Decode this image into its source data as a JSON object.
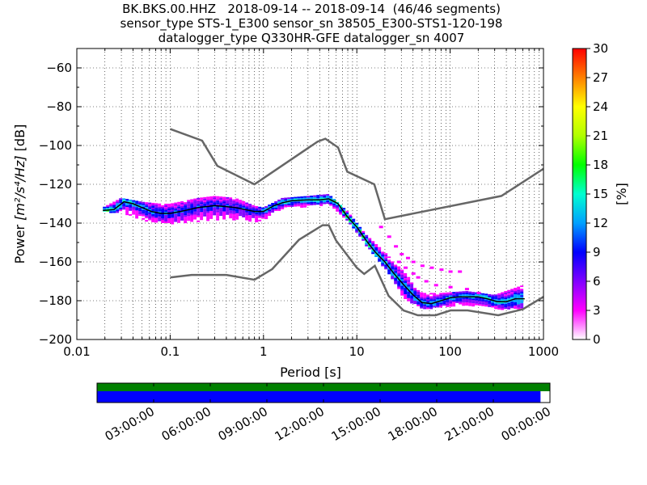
{
  "chart_data": [
    {
      "type": "heatmap",
      "subtype": "probabilistic-power-spectral-density",
      "title_lines": [
        "BK.BKS.00.HHZ   2018-09-14 -- 2018-09-14  (46/46 segments)",
        "sensor_type STS-1_E300 sensor_sn 38505_E300-STS1-120-198",
        "datalogger_type Q330HR-GFE datalogger_sn 4007"
      ],
      "xlabel": "Period [s]",
      "ylabel_prefix": "Power ",
      "ylabel_units": "[m²/s⁴/Hz]",
      "ylabel_suffix": " [dB]",
      "x_scale": "log",
      "xlim": [
        0.01,
        1000
      ],
      "ylim": [
        -200,
        -50
      ],
      "x_ticks": [
        {
          "value": 0.01,
          "label": "0.01"
        },
        {
          "value": 0.1,
          "label": "0.1"
        },
        {
          "value": 1,
          "label": "1"
        },
        {
          "value": 10,
          "label": "10"
        },
        {
          "value": 100,
          "label": "100"
        },
        {
          "value": 1000,
          "label": "1000"
        }
      ],
      "y_ticks": [
        {
          "value": -200,
          "label": "−200"
        },
        {
          "value": -180,
          "label": "−180"
        },
        {
          "value": -160,
          "label": "−160"
        },
        {
          "value": -140,
          "label": "−140"
        },
        {
          "value": -120,
          "label": "−120"
        },
        {
          "value": -100,
          "label": "−100"
        },
        {
          "value": -80,
          "label": "−80"
        },
        {
          "value": -60,
          "label": "−60"
        }
      ],
      "grid": "dotted",
      "colorbar": {
        "label": "[%]",
        "range": [
          0,
          30
        ],
        "ticks": [
          {
            "value": 0,
            "label": "0"
          },
          {
            "value": 3,
            "label": "3"
          },
          {
            "value": 6,
            "label": "6"
          },
          {
            "value": 9,
            "label": "9"
          },
          {
            "value": 12,
            "label": "12"
          },
          {
            "value": 15,
            "label": "15"
          },
          {
            "value": 18,
            "label": "18"
          },
          {
            "value": 21,
            "label": "21"
          },
          {
            "value": 24,
            "label": "24"
          },
          {
            "value": 27,
            "label": "27"
          },
          {
            "value": 30,
            "label": "30"
          }
        ],
        "colors": [
          "#ffffff",
          "#ff00ff",
          "#8000ff",
          "#0000ff",
          "#00a0ff",
          "#00ffd0",
          "#00ff00",
          "#b0ff00",
          "#ffff00",
          "#ff8000",
          "#ff0000"
        ]
      },
      "noise_models": [
        {
          "name": "high-noise-model",
          "color": "#666666",
          "points": [
            [
              0.1,
              -91.5
            ],
            [
              0.22,
              -97.5
            ],
            [
              0.32,
              -110.5
            ],
            [
              0.8,
              -120
            ],
            [
              3.8,
              -98
            ],
            [
              4.6,
              -96.5
            ],
            [
              6.3,
              -101
            ],
            [
              7.9,
              -113.5
            ],
            [
              15.4,
              -120
            ],
            [
              20,
              -138
            ],
            [
              354,
              -126
            ],
            [
              1000,
              -112
            ]
          ]
        },
        {
          "name": "low-noise-model",
          "color": "#666666",
          "points": [
            [
              0.1,
              -168
            ],
            [
              0.17,
              -166.7
            ],
            [
              0.4,
              -166.7
            ],
            [
              0.8,
              -169.2
            ],
            [
              1.24,
              -163.7
            ],
            [
              2.4,
              -148.6
            ],
            [
              4.3,
              -141.1
            ],
            [
              5.0,
              -141.1
            ],
            [
              6.0,
              -149
            ],
            [
              10,
              -163
            ],
            [
              12,
              -166.2
            ],
            [
              15.6,
              -162
            ],
            [
              21.9,
              -177.5
            ],
            [
              31.6,
              -185
            ],
            [
              45,
              -187.5
            ],
            [
              70,
              -187.5
            ],
            [
              101,
              -185
            ],
            [
              154,
              -185
            ],
            [
              328,
              -187.5
            ],
            [
              600,
              -184.4
            ],
            [
              1000,
              -178
            ]
          ]
        }
      ],
      "mode_curve": [
        [
          0.019,
          -133.5
        ],
        [
          0.025,
          -133
        ],
        [
          0.032,
          -129
        ],
        [
          0.04,
          -130
        ],
        [
          0.05,
          -132
        ],
        [
          0.063,
          -134
        ],
        [
          0.08,
          -135
        ],
        [
          0.1,
          -135
        ],
        [
          0.13,
          -134
        ],
        [
          0.16,
          -133
        ],
        [
          0.2,
          -132
        ],
        [
          0.3,
          -131
        ],
        [
          0.4,
          -131.5
        ],
        [
          0.5,
          -132
        ],
        [
          0.63,
          -133
        ],
        [
          0.8,
          -134
        ],
        [
          1.0,
          -134
        ],
        [
          1.3,
          -131
        ],
        [
          1.6,
          -129.5
        ],
        [
          2.0,
          -128.5
        ],
        [
          3.0,
          -128
        ],
        [
          4.0,
          -128
        ],
        [
          5.0,
          -127.5
        ],
        [
          6.3,
          -130
        ],
        [
          8,
          -137
        ],
        [
          10,
          -142
        ],
        [
          12.6,
          -149
        ],
        [
          15.8,
          -155
        ],
        [
          20,
          -160
        ],
        [
          25,
          -166
        ],
        [
          32,
          -172
        ],
        [
          40,
          -177
        ],
        [
          50,
          -181
        ],
        [
          63,
          -181.5
        ],
        [
          80,
          -180
        ],
        [
          100,
          -178.5
        ],
        [
          126,
          -178
        ],
        [
          160,
          -178
        ],
        [
          200,
          -178
        ],
        [
          250,
          -179
        ],
        [
          320,
          -180.5
        ],
        [
          400,
          -180.5
        ],
        [
          500,
          -179
        ],
        [
          630,
          -179
        ]
      ],
      "density_band": [
        {
          "x": 0.019,
          "low": -134,
          "high": -132,
          "pct": 12
        },
        {
          "x": 0.03,
          "low": -134,
          "high": -127,
          "pct": 9
        },
        {
          "x": 0.05,
          "low": -138,
          "high": -129,
          "pct": 8
        },
        {
          "x": 0.08,
          "low": -140,
          "high": -130,
          "pct": 7
        },
        {
          "x": 0.1,
          "low": -140,
          "high": -130,
          "pct": 7
        },
        {
          "x": 0.2,
          "low": -139,
          "high": -127,
          "pct": 6
        },
        {
          "x": 0.3,
          "low": -138,
          "high": -126,
          "pct": 6
        },
        {
          "x": 0.5,
          "low": -138,
          "high": -127,
          "pct": 6
        },
        {
          "x": 0.8,
          "low": -139,
          "high": -131,
          "pct": 6
        },
        {
          "x": 1.0,
          "low": -138,
          "high": -132,
          "pct": 8
        },
        {
          "x": 1.6,
          "low": -132,
          "high": -127,
          "pct": 9
        },
        {
          "x": 3,
          "low": -131,
          "high": -126,
          "pct": 10
        },
        {
          "x": 5,
          "low": -130,
          "high": -125,
          "pct": 10
        },
        {
          "x": 8,
          "low": -139,
          "high": -134,
          "pct": 11
        },
        {
          "x": 12.6,
          "low": -151,
          "high": -146,
          "pct": 11
        },
        {
          "x": 20,
          "low": -163,
          "high": -155,
          "pct": 9
        },
        {
          "x": 32,
          "low": -178,
          "high": -165,
          "pct": 8
        },
        {
          "x": 50,
          "low": -184,
          "high": -176,
          "pct": 8
        },
        {
          "x": 80,
          "low": -183,
          "high": -176,
          "pct": 8
        },
        {
          "x": 150,
          "low": -182,
          "high": -175,
          "pct": 8
        },
        {
          "x": 300,
          "low": -184,
          "high": -177,
          "pct": 9
        },
        {
          "x": 600,
          "low": -184,
          "high": -172,
          "pct": 9
        }
      ],
      "sparse_excursions": [
        {
          "x": 18,
          "y": -142,
          "pct": 2
        },
        {
          "x": 22,
          "y": -147,
          "pct": 2
        },
        {
          "x": 26,
          "y": -152,
          "pct": 2
        },
        {
          "x": 30,
          "y": -156,
          "pct": 2
        },
        {
          "x": 35,
          "y": -158,
          "pct": 2
        },
        {
          "x": 40,
          "y": -160,
          "pct": 2
        },
        {
          "x": 50,
          "y": -162,
          "pct": 2
        },
        {
          "x": 63,
          "y": -163,
          "pct": 2
        },
        {
          "x": 80,
          "y": -164,
          "pct": 2
        },
        {
          "x": 100,
          "y": -165,
          "pct": 2
        },
        {
          "x": 126,
          "y": -165,
          "pct": 2
        },
        {
          "x": 40,
          "y": -166,
          "pct": 2
        },
        {
          "x": 55,
          "y": -170,
          "pct": 2
        },
        {
          "x": 70,
          "y": -172,
          "pct": 2
        },
        {
          "x": 100,
          "y": -173,
          "pct": 2
        },
        {
          "x": 150,
          "y": -174,
          "pct": 2
        },
        {
          "x": 200,
          "y": -176,
          "pct": 2
        },
        {
          "x": 28,
          "y": -160,
          "pct": 2
        },
        {
          "x": 33,
          "y": -163,
          "pct": 2
        },
        {
          "x": 45,
          "y": -168,
          "pct": 2
        }
      ]
    },
    {
      "type": "timeline",
      "range_hours": [
        0,
        24
      ],
      "tick_labels": [
        {
          "hour": 3,
          "label": "03:00:00"
        },
        {
          "hour": 6,
          "label": "06:00:00"
        },
        {
          "hour": 9,
          "label": "09:00:00"
        },
        {
          "hour": 12,
          "label": "12:00:00"
        },
        {
          "hour": 15,
          "label": "15:00:00"
        },
        {
          "hour": 18,
          "label": "18:00:00"
        },
        {
          "hour": 21,
          "label": "21:00:00"
        },
        {
          "hour": 24,
          "label": "00:00:00"
        }
      ],
      "data_availability": {
        "start_hour": 0,
        "end_hour": 24,
        "color": "#008000"
      },
      "processed_segments": {
        "start_hour": 0,
        "end_hour": 23.5,
        "color": "#0000ff"
      }
    }
  ]
}
